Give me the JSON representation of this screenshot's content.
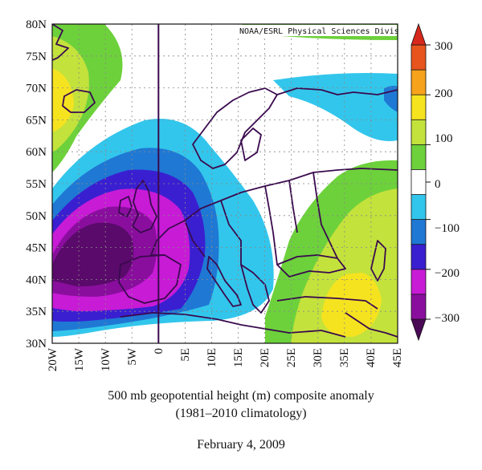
{
  "map": {
    "credit": "NOAA/ESRL Physical Sciences Division",
    "lat_labels": [
      "80N",
      "75N",
      "70N",
      "65N",
      "60N",
      "55N",
      "50N",
      "45N",
      "40N",
      "35N",
      "30N"
    ],
    "lon_labels": [
      "20W",
      "15W",
      "10W",
      "5W",
      "0",
      "5E",
      "10E",
      "15E",
      "20E",
      "25E",
      "30E",
      "35E",
      "40E",
      "45E"
    ],
    "lat_range": [
      30,
      80
    ],
    "lon_range": [
      -20,
      45
    ],
    "grid": "dotted"
  },
  "colorbar": {
    "labels": [
      "300",
      "200",
      "100",
      "0",
      "−100",
      "−200",
      "−300"
    ],
    "levels": [
      {
        "range": "250 to 300",
        "color": "#e8541e"
      },
      {
        "range": "200 to 250",
        "color": "#f7a21b"
      },
      {
        "range": "150 to 200",
        "color": "#f6e31f"
      },
      {
        "range": "100 to 150",
        "color": "#c4e23c"
      },
      {
        "range": "50 to 100",
        "color": "#6dd13b"
      },
      {
        "range": "-50 to 50",
        "color": "#ffffff"
      },
      {
        "range": "-100 to -50",
        "color": "#33c6ec"
      },
      {
        "range": "-150 to -100",
        "color": "#1f78d4"
      },
      {
        "range": "-200 to -150",
        "color": "#3a1fd1"
      },
      {
        "range": "-250 to -200",
        "color": "#c81bd6"
      },
      {
        "range": "-300 to -250",
        "color": "#8a0e9e"
      }
    ]
  },
  "caption": {
    "line1": "500 mb geopotential height (m) composite anomaly",
    "line2": "(1981–2010 climatology)",
    "date": "February 4, 2009"
  }
}
